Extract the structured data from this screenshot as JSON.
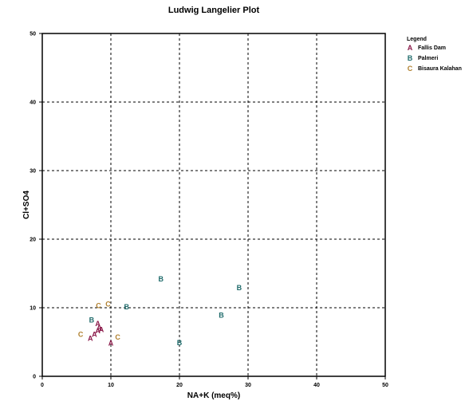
{
  "chart_data": {
    "type": "scatter",
    "title": "Ludwig Langelier Plot",
    "xlabel": "NA+K (meq%)",
    "ylabel": "Cl+SO4",
    "xlim": [
      0,
      50
    ],
    "ylim": [
      0,
      50
    ],
    "xticks": [
      "0",
      "10",
      "20",
      "30",
      "40",
      "50"
    ],
    "yticks": [
      "0",
      "10",
      "20",
      "30",
      "40",
      "50"
    ],
    "grid": true,
    "legend_title": "Legend",
    "legend_position": "right-outside",
    "series": [
      {
        "name": "Fallis Dam",
        "marker": "A",
        "color": "#8b1a4a",
        "points": [
          [
            7,
            5.5
          ],
          [
            7.6,
            6.1
          ],
          [
            8.1,
            6.6
          ],
          [
            8.3,
            7.1
          ],
          [
            8.6,
            6.8
          ],
          [
            8.1,
            7.7
          ],
          [
            10,
            4.8
          ]
        ]
      },
      {
        "name": "Palmeri",
        "marker": "B",
        "color": "#1f6b6b",
        "points": [
          [
            7.2,
            8.2
          ],
          [
            12.3,
            10.1
          ],
          [
            17.3,
            14.2
          ],
          [
            20,
            4.9
          ],
          [
            26.1,
            8.9
          ],
          [
            28.7,
            12.9
          ]
        ]
      },
      {
        "name": "Bisaura Kalahan",
        "marker": "C",
        "color": "#b0802e",
        "points": [
          [
            5.6,
            6.1
          ],
          [
            8.2,
            10.3
          ],
          [
            9.6,
            10.5
          ],
          [
            11,
            5.7
          ]
        ]
      }
    ]
  }
}
